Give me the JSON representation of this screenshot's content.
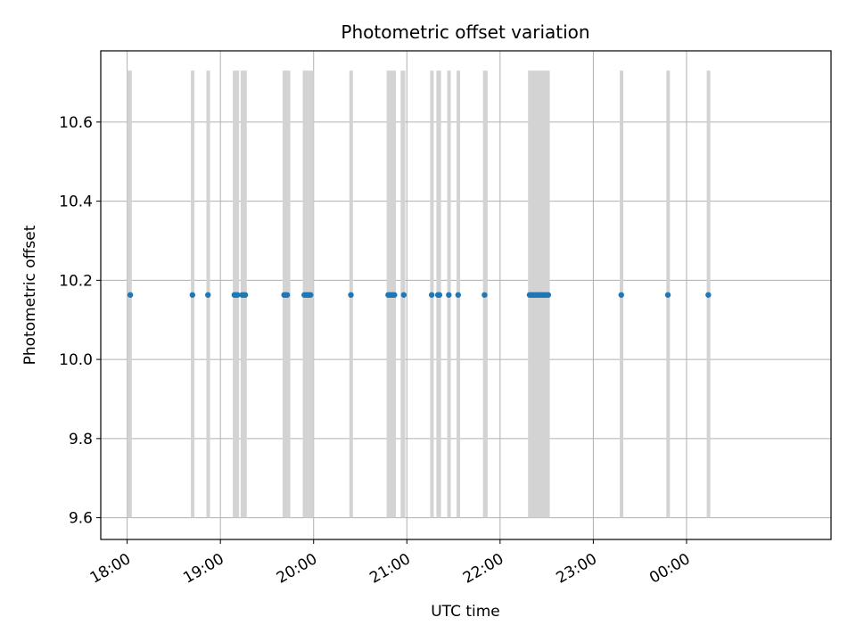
{
  "chart_data": {
    "type": "scatter",
    "title": "Photometric offset variation",
    "xlabel": "UTC time",
    "ylabel": "Photometric offset",
    "x_ticks": [
      "18:00",
      "19:00",
      "20:00",
      "21:00",
      "22:00",
      "23:00",
      "00:00"
    ],
    "y_ticks": [
      "9.6",
      "9.8",
      "10.0",
      "10.2",
      "10.4",
      "10.6"
    ],
    "ylim": [
      9.545,
      10.78
    ],
    "xlim": [
      "17:43",
      "01:33"
    ],
    "grid": true,
    "colors": {
      "points": "#1f77b4",
      "bands": "#d3d3d3",
      "grid": "#b0b0b0"
    },
    "band_y_range": [
      9.6,
      10.73
    ],
    "bands": [
      [
        "18:00",
        "18:03"
      ],
      [
        "18:41",
        "18:43"
      ],
      [
        "18:51",
        "18:53"
      ],
      [
        "19:08",
        "19:12"
      ],
      [
        "19:13",
        "19:17"
      ],
      [
        "19:40",
        "19:45"
      ],
      [
        "19:53",
        "20:00"
      ],
      [
        "20:23",
        "20:25"
      ],
      [
        "20:47",
        "20:53"
      ],
      [
        "20:56",
        "20:59"
      ],
      [
        "21:15",
        "21:17"
      ],
      [
        "21:19",
        "21:22"
      ],
      [
        "21:26",
        "21:28"
      ],
      [
        "21:32",
        "21:34"
      ],
      [
        "21:49",
        "21:52"
      ],
      [
        "22:18",
        "22:32"
      ],
      [
        "23:17",
        "23:19"
      ],
      [
        "23:47",
        "23:49"
      ],
      [
        "00:13",
        "00:15"
      ]
    ],
    "series": [
      {
        "x": [
          "18:02",
          "18:42",
          "18:52",
          "19:09",
          "19:10",
          "19:11",
          "19:14",
          "19:15",
          "19:16",
          "19:41",
          "19:42",
          "19:43",
          "19:54",
          "19:55",
          "19:56",
          "19:57",
          "19:58",
          "20:24",
          "20:48",
          "20:49",
          "20:50",
          "20:51",
          "20:52",
          "20:58",
          "21:16",
          "21:20",
          "21:21",
          "21:27",
          "21:33",
          "21:50",
          "22:19",
          "22:20",
          "22:21",
          "22:22",
          "22:23",
          "22:24",
          "22:25",
          "22:26",
          "22:27",
          "22:28",
          "22:29",
          "22:30",
          "22:31",
          "23:18",
          "23:48",
          "00:14"
        ],
        "y": [
          10.163,
          10.163,
          10.163,
          10.163,
          10.163,
          10.163,
          10.163,
          10.163,
          10.163,
          10.163,
          10.163,
          10.163,
          10.163,
          10.163,
          10.163,
          10.163,
          10.163,
          10.163,
          10.163,
          10.163,
          10.163,
          10.163,
          10.163,
          10.163,
          10.163,
          10.163,
          10.163,
          10.163,
          10.163,
          10.163,
          10.163,
          10.163,
          10.163,
          10.163,
          10.163,
          10.163,
          10.163,
          10.163,
          10.163,
          10.163,
          10.163,
          10.163,
          10.163,
          10.163,
          10.163,
          10.163
        ]
      }
    ]
  }
}
